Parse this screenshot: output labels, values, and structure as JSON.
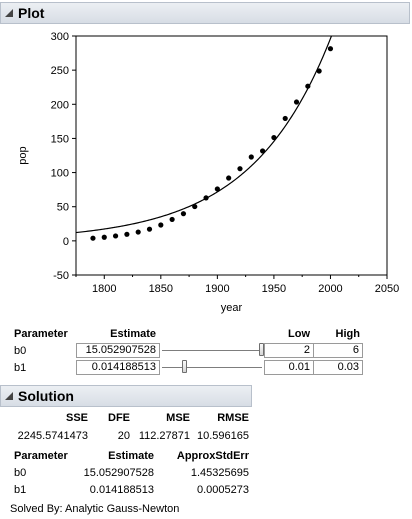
{
  "plot": {
    "title": "Plot"
  },
  "chart_data": {
    "type": "scatter",
    "xlabel": "year",
    "ylabel": "pop",
    "xlim": [
      1775,
      2050
    ],
    "ylim": [
      -50,
      300
    ],
    "x_ticks": [
      "1800",
      "1850",
      "1900",
      "1950",
      "2000",
      "2050"
    ],
    "y_ticks": [
      "-50",
      "0",
      "50",
      "100",
      "150",
      "200",
      "250",
      "300"
    ],
    "points": [
      {
        "x": 1790,
        "y": 3.9
      },
      {
        "x": 1800,
        "y": 5.3
      },
      {
        "x": 1810,
        "y": 7.2
      },
      {
        "x": 1820,
        "y": 9.6
      },
      {
        "x": 1830,
        "y": 12.9
      },
      {
        "x": 1840,
        "y": 17.1
      },
      {
        "x": 1850,
        "y": 23.2
      },
      {
        "x": 1860,
        "y": 31.4
      },
      {
        "x": 1870,
        "y": 39.8
      },
      {
        "x": 1880,
        "y": 50.2
      },
      {
        "x": 1890,
        "y": 62.9
      },
      {
        "x": 1900,
        "y": 76.0
      },
      {
        "x": 1910,
        "y": 92.0
      },
      {
        "x": 1920,
        "y": 105.7
      },
      {
        "x": 1930,
        "y": 122.8
      },
      {
        "x": 1940,
        "y": 131.7
      },
      {
        "x": 1950,
        "y": 151.3
      },
      {
        "x": 1960,
        "y": 179.3
      },
      {
        "x": 1970,
        "y": 203.3
      },
      {
        "x": 1980,
        "y": 226.5
      },
      {
        "x": 1990,
        "y": 248.7
      },
      {
        "x": 2000,
        "y": 281.4
      }
    ],
    "model_curve": {
      "formula": "b0 * exp(b1 * (year - 1790))",
      "b0": 15.052907528,
      "b1": 0.014188513
    }
  },
  "parameters": {
    "headers": {
      "parameter": "Parameter",
      "estimate": "Estimate",
      "low": "Low",
      "high": "High"
    },
    "rows": [
      {
        "name": "b0",
        "estimate": "15.052907528",
        "low": "2",
        "high": "6",
        "slider_position": 1.0
      },
      {
        "name": "b1",
        "estimate": "0.014188513",
        "low": "0.01",
        "high": "0.03",
        "slider_position": 0.21
      }
    ]
  },
  "solution": {
    "title": "Solution",
    "stats_headers": {
      "sse": "SSE",
      "dfe": "DFE",
      "mse": "MSE",
      "rmse": "RMSE"
    },
    "stats_values": {
      "sse": "2245.5741473",
      "dfe": "20",
      "mse": "112.27871",
      "rmse": "10.596165"
    },
    "param_headers": {
      "parameter": "Parameter",
      "estimate": "Estimate",
      "stderr": "ApproxStdErr"
    },
    "param_rows": [
      {
        "name": "b0",
        "estimate": "15.052907528",
        "stderr": "1.45325695"
      },
      {
        "name": "b1",
        "estimate": "0.014188513",
        "stderr": "0.0005273"
      }
    ],
    "solved_by": "Solved By: Analytic Gauss-Newton"
  }
}
